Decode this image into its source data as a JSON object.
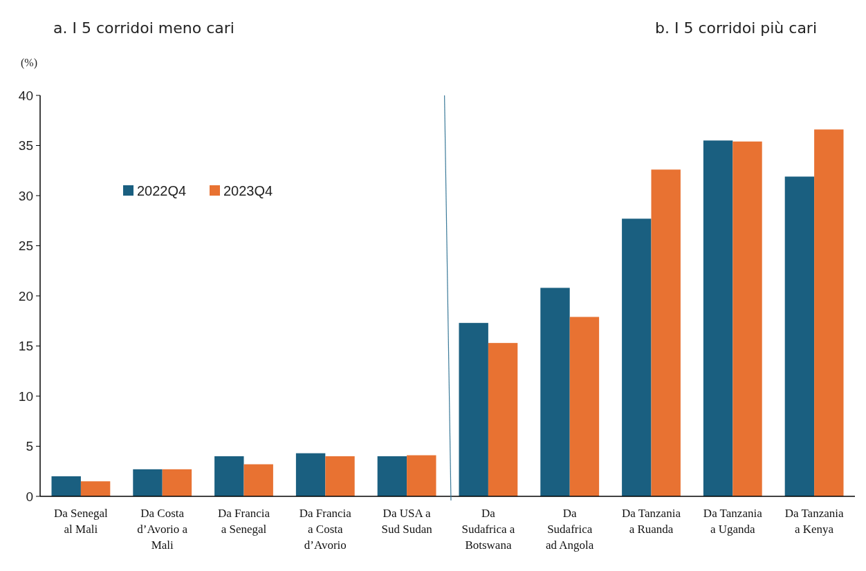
{
  "chart_data": {
    "type": "bar",
    "annotations": [
      "a. I 5 corridoi meno cari",
      "b. I 5 corridoi più cari"
    ],
    "ylabel": "(%)",
    "categories": [
      "Da Senegal al Mali",
      "Da Costa d’Avorio a Mali",
      "Da Francia a Senegal",
      "Da Francia a Costa d’Avorio",
      "Da USA a Sud Sudan",
      "Da Sudafrica a Botswana",
      "Da Sudafrica ad Angola",
      "Da Tanzania a Ruanda",
      "Da Tanzania a Uganda",
      "Da Tanzania a Kenya"
    ],
    "series": [
      {
        "name": "2022Q4",
        "color": "#1a5f80",
        "values": [
          2.0,
          2.7,
          4.0,
          4.3,
          4.0,
          17.3,
          20.8,
          27.7,
          35.5,
          31.9
        ]
      },
      {
        "name": "2023Q4",
        "color": "#e87232",
        "values": [
          1.5,
          2.7,
          3.2,
          4.0,
          4.1,
          15.3,
          17.9,
          32.6,
          35.4,
          36.6
        ]
      }
    ],
    "ylim": [
      0,
      40
    ],
    "yticks": [
      0,
      5,
      10,
      15,
      20,
      25,
      30,
      35,
      40
    ],
    "grid": false,
    "legend": "top left"
  }
}
